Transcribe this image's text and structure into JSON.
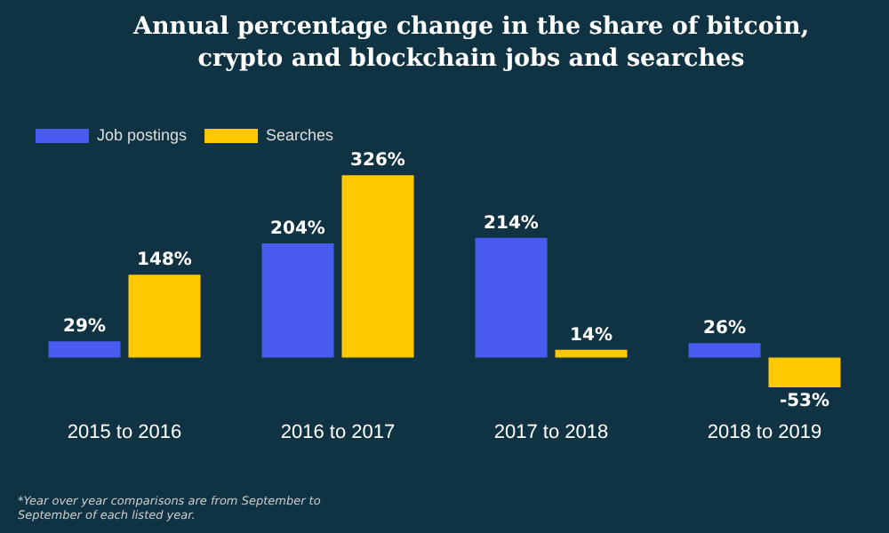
{
  "chart_data": {
    "type": "bar",
    "title": "Annual percentage change in the share of bitcoin, crypto and blockchain jobs and searches",
    "categories": [
      "2015 to 2016",
      "2016 to 2017",
      "2017 to 2018",
      "2018 to 2019"
    ],
    "series": [
      {
        "name": "Job postings",
        "color": "#4a5cf0",
        "values": [
          29,
          204,
          214,
          26
        ],
        "value_labels": [
          "29%",
          "204%",
          "214%",
          "26%"
        ]
      },
      {
        "name": "Searches",
        "color": "#ffc800",
        "values": [
          148,
          326,
          14,
          -53
        ],
        "value_labels": [
          "148%",
          "326%",
          "14%",
          "-53%"
        ]
      }
    ],
    "legend": "top left",
    "grid": false,
    "annotations": [
      "*Year over year comparisons are from September to September of each listed year."
    ]
  }
}
